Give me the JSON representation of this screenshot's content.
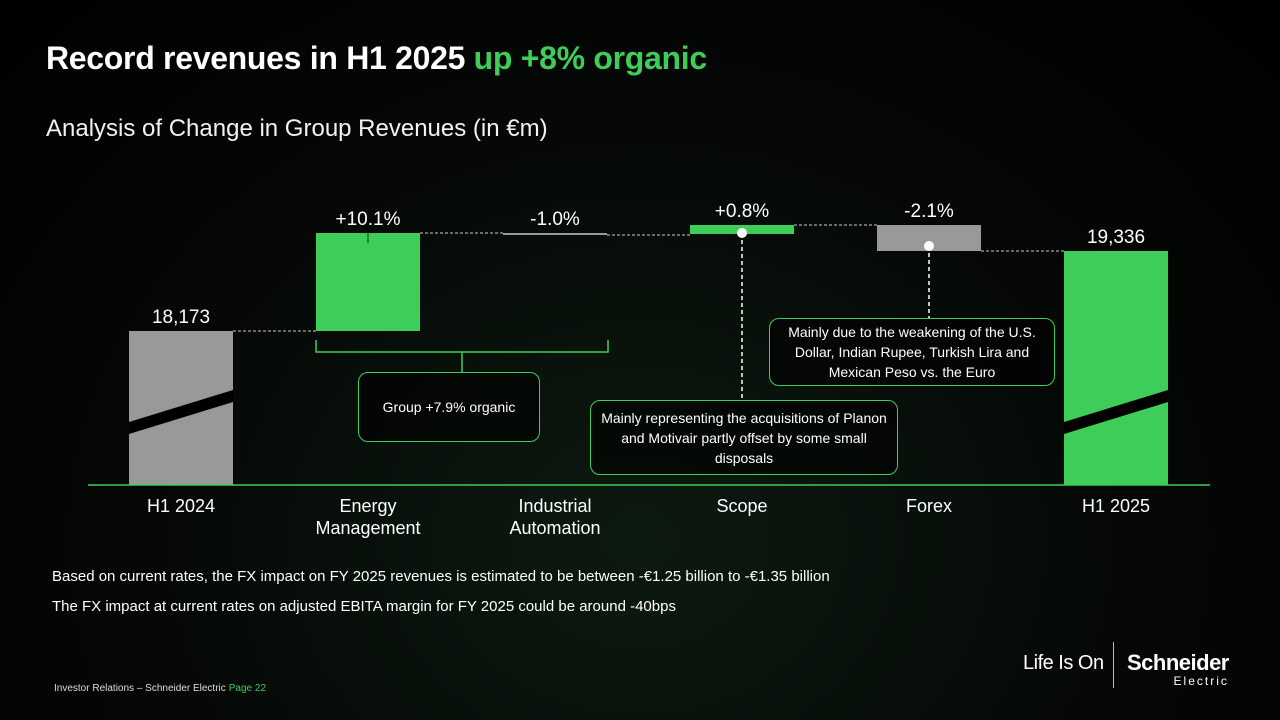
{
  "title": {
    "main": "Record revenues in H1 2025",
    "accent": "up +8% organic"
  },
  "subtitle": "Analysis of Change in Group Revenues (in €m)",
  "colors": {
    "green": "#3dcd58",
    "grey": "#999999"
  },
  "chart_data": {
    "type": "waterfall",
    "categories": [
      "H1 2024",
      "Energy\nManagement",
      "Industrial\nAutomation",
      "Scope",
      "Forex",
      "H1 2025"
    ],
    "bars": [
      {
        "category": "H1 2024",
        "kind": "total",
        "value": 18173,
        "label": "18,173",
        "color": "grey"
      },
      {
        "category": "Energy Management",
        "kind": "delta",
        "label": "+10.1%",
        "color": "green"
      },
      {
        "category": "Industrial Automation",
        "kind": "delta",
        "label": "-1.0%",
        "color": "grey"
      },
      {
        "category": "Scope",
        "kind": "delta",
        "label": "+0.8%",
        "color": "green"
      },
      {
        "category": "Forex",
        "kind": "delta",
        "label": "-2.1%",
        "color": "grey"
      },
      {
        "category": "H1 2025",
        "kind": "total",
        "value": 19336,
        "label": "19,336",
        "color": "green"
      }
    ],
    "axis_break": true
  },
  "callouts": {
    "organic": "Group +7.9% organic",
    "scope": "Mainly representing the acquisitions of Planon and Motivair partly offset by some small disposals",
    "forex": "Mainly due to the weakening of the U.S. Dollar, Indian Rupee, Turkish Lira and Mexican Peso vs. the Euro"
  },
  "notes": [
    "Based on current rates, the FX impact on FY 2025 revenues is estimated to be between -€1.25 billion to -€1.35 billion",
    "The FX impact at current rates on adjusted EBITA margin for FY 2025 could be around -40bps"
  ],
  "footer": {
    "text": "Investor Relations – Schneider Electric",
    "page": "Page 22"
  },
  "brand": {
    "tagline": "Life Is On",
    "name": "Schneider",
    "sub": "Electric"
  }
}
